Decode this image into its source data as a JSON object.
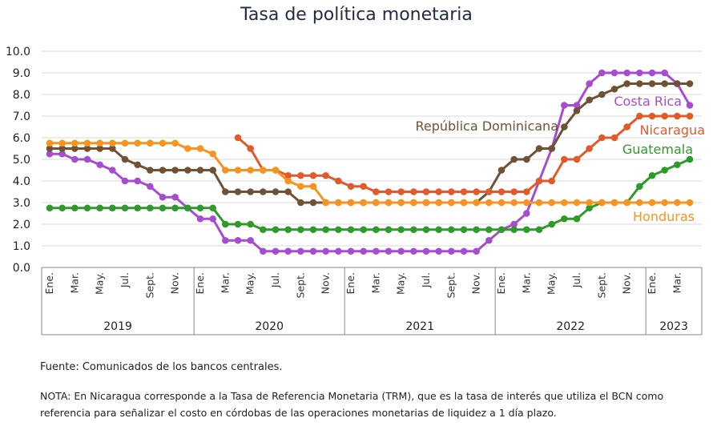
{
  "chart_data": {
    "type": "line",
    "title": "Tasa de política monetaria",
    "ylim": [
      0,
      10
    ],
    "yticks": [
      "0.0",
      "1.0",
      "2.0",
      "3.0",
      "4.0",
      "5.0",
      "6.0",
      "7.0",
      "8.0",
      "9.0",
      "10.0"
    ],
    "grid": true,
    "month_labels": [
      "Ene.",
      "Mar.",
      "May.",
      "Jul.",
      "Sept.",
      "Nov.",
      "Ene.",
      "Mar.",
      "May.",
      "Jul.",
      "Sept.",
      "Nov.",
      "Ene.",
      "Mar.",
      "May.",
      "Jul.",
      "Sept.",
      "Nov.",
      "Ene.",
      "Mar.",
      "May.",
      "Jul.",
      "Sept.",
      "Nov.",
      "Ene.",
      "Mar."
    ],
    "years": [
      "2019",
      "2020",
      "2021",
      "2022",
      "2023"
    ],
    "x": [
      "2019-01",
      "2019-02",
      "2019-03",
      "2019-04",
      "2019-05",
      "2019-06",
      "2019-07",
      "2019-08",
      "2019-09",
      "2019-10",
      "2019-11",
      "2019-12",
      "2020-01",
      "2020-02",
      "2020-03",
      "2020-04",
      "2020-05",
      "2020-06",
      "2020-07",
      "2020-08",
      "2020-09",
      "2020-10",
      "2020-11",
      "2020-12",
      "2021-01",
      "2021-02",
      "2021-03",
      "2021-04",
      "2021-05",
      "2021-06",
      "2021-07",
      "2021-08",
      "2021-09",
      "2021-10",
      "2021-11",
      "2021-12",
      "2022-01",
      "2022-02",
      "2022-03",
      "2022-04",
      "2022-05",
      "2022-06",
      "2022-07",
      "2022-08",
      "2022-09",
      "2022-10",
      "2022-11",
      "2022-12",
      "2023-01",
      "2023-02",
      "2023-03",
      "2023-04"
    ],
    "series": [
      {
        "name": "Costa Rica",
        "color": "#a64ccf",
        "values": [
          5.25,
          5.25,
          5.0,
          5.0,
          4.75,
          4.5,
          4.0,
          4.0,
          3.75,
          3.25,
          3.25,
          2.75,
          2.25,
          2.25,
          1.25,
          1.25,
          1.25,
          0.75,
          0.75,
          0.75,
          0.75,
          0.75,
          0.75,
          0.75,
          0.75,
          0.75,
          0.75,
          0.75,
          0.75,
          0.75,
          0.75,
          0.75,
          0.75,
          0.75,
          0.75,
          1.25,
          1.75,
          2.0,
          2.5,
          4.0,
          5.5,
          7.5,
          7.5,
          8.5,
          9.0,
          9.0,
          9.0,
          9.0,
          9.0,
          9.0,
          8.5,
          7.5
        ]
      },
      {
        "name": "República Dominicana",
        "color": "#6f5236",
        "values": [
          5.5,
          5.5,
          5.5,
          5.5,
          5.5,
          5.5,
          5.0,
          4.75,
          4.5,
          4.5,
          4.5,
          4.5,
          4.5,
          4.5,
          3.5,
          3.5,
          3.5,
          3.5,
          3.5,
          3.5,
          3.0,
          3.0,
          3.0,
          3.0,
          3.0,
          3.0,
          3.0,
          3.0,
          3.0,
          3.0,
          3.0,
          3.0,
          3.0,
          3.0,
          3.0,
          3.5,
          4.5,
          5.0,
          5.0,
          5.5,
          5.5,
          6.5,
          7.25,
          7.75,
          8.0,
          8.25,
          8.5,
          8.5,
          8.5,
          8.5,
          8.5,
          8.5
        ]
      },
      {
        "name": "Nicaragua",
        "color": "#e2592a",
        "values": [
          null,
          null,
          null,
          null,
          null,
          null,
          null,
          null,
          null,
          null,
          null,
          null,
          null,
          null,
          null,
          6.0,
          5.5,
          4.5,
          4.5,
          4.25,
          4.25,
          4.25,
          4.25,
          4.0,
          3.75,
          3.75,
          3.5,
          3.5,
          3.5,
          3.5,
          3.5,
          3.5,
          3.5,
          3.5,
          3.5,
          3.5,
          3.5,
          3.5,
          3.5,
          4.0,
          4.0,
          5.0,
          5.0,
          5.5,
          6.0,
          6.0,
          6.5,
          7.0,
          7.0,
          7.0,
          7.0,
          7.0
        ]
      },
      {
        "name": "Guatemala",
        "color": "#2e9a2a",
        "values": [
          2.75,
          2.75,
          2.75,
          2.75,
          2.75,
          2.75,
          2.75,
          2.75,
          2.75,
          2.75,
          2.75,
          2.75,
          2.75,
          2.75,
          2.0,
          2.0,
          2.0,
          1.75,
          1.75,
          1.75,
          1.75,
          1.75,
          1.75,
          1.75,
          1.75,
          1.75,
          1.75,
          1.75,
          1.75,
          1.75,
          1.75,
          1.75,
          1.75,
          1.75,
          1.75,
          1.75,
          1.75,
          1.75,
          1.75,
          1.75,
          2.0,
          2.25,
          2.25,
          2.75,
          3.0,
          3.0,
          3.0,
          3.75,
          4.25,
          4.5,
          4.75,
          5.0
        ]
      },
      {
        "name": "Honduras",
        "color": "#f7931e",
        "values": [
          5.75,
          5.75,
          5.75,
          5.75,
          5.75,
          5.75,
          5.75,
          5.75,
          5.75,
          5.75,
          5.75,
          5.5,
          5.5,
          5.25,
          4.5,
          4.5,
          4.5,
          4.5,
          4.5,
          4.0,
          3.75,
          3.75,
          3.0,
          3.0,
          3.0,
          3.0,
          3.0,
          3.0,
          3.0,
          3.0,
          3.0,
          3.0,
          3.0,
          3.0,
          3.0,
          3.0,
          3.0,
          3.0,
          3.0,
          3.0,
          3.0,
          3.0,
          3.0,
          3.0,
          3.0,
          3.0,
          3.0,
          3.0,
          3.0,
          3.0,
          3.0,
          3.0
        ]
      }
    ]
  },
  "footer": {
    "source": "Fuente: Comunicados de los bancos centrales.",
    "note": "NOTA: En Nicaragua corresponde a la Tasa de Referencia Monetaria (TRM), que es la tasa de interés que utiliza el BCN como referencia para señalizar el costo en córdobas de las operaciones monetarias de liquidez a 1 día plazo."
  }
}
